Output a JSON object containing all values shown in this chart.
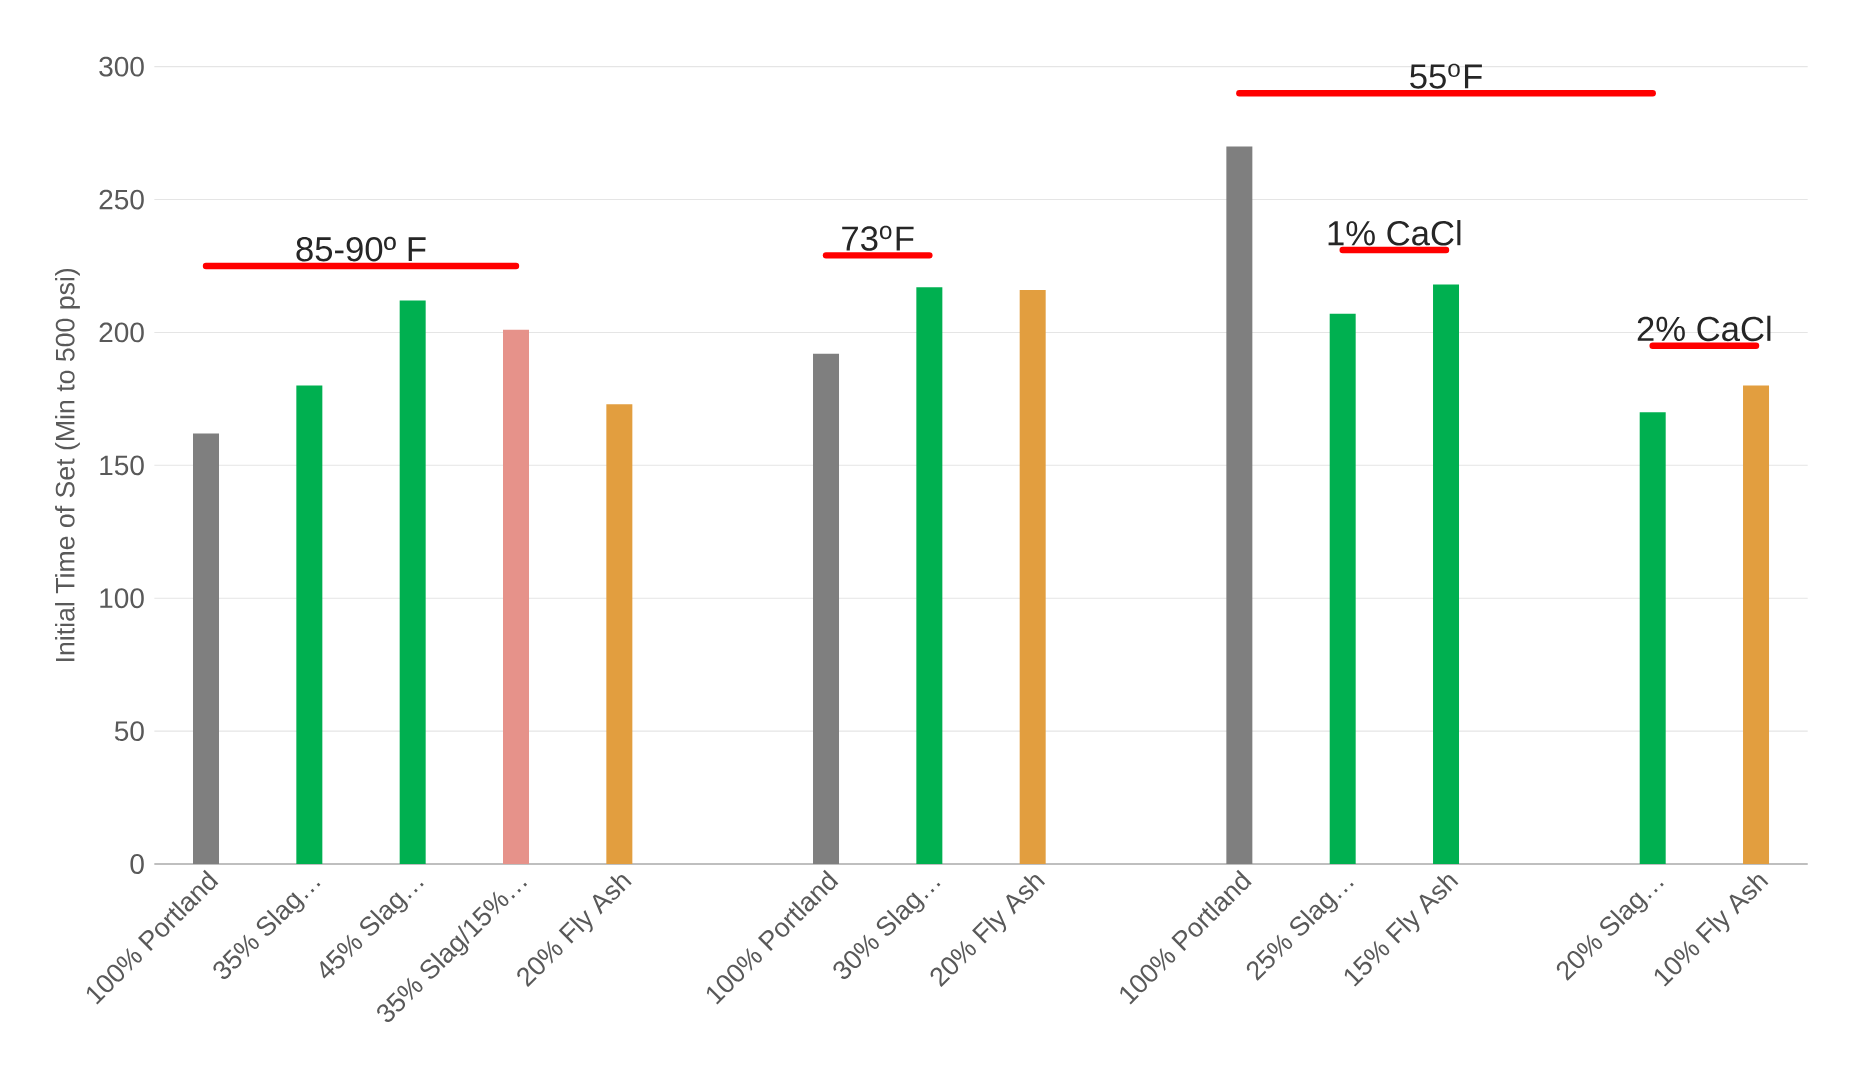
{
  "chart_data": {
    "type": "bar",
    "ylabel": "Initial Time of Set (Min to 500 psi)",
    "categories": [
      "100% Portland",
      "35% Slag…",
      "45% Slag…",
      "35% Slag/15%…",
      "20% Fly Ash",
      null,
      "100% Portland",
      "30% Slag…",
      "20% Fly Ash",
      null,
      "100% Portland",
      "25% Slag…",
      "15% Fly Ash",
      null,
      "20% Slag…",
      "10% Fly Ash"
    ],
    "series": [
      {
        "color": "#7f7f7f",
        "values": [
          162,
          null,
          null,
          null,
          null,
          null,
          192,
          null,
          null,
          null,
          270,
          null,
          null,
          null,
          null,
          null
        ]
      },
      {
        "color": "#00b050",
        "values": [
          null,
          180,
          212,
          null,
          null,
          null,
          null,
          217,
          null,
          null,
          null,
          207,
          218,
          null,
          170,
          null
        ]
      },
      {
        "color": "#e6928a",
        "values": [
          null,
          null,
          null,
          201,
          null,
          null,
          null,
          null,
          null,
          null,
          null,
          null,
          null,
          null,
          null,
          null
        ]
      },
      {
        "color": "#e29e3f",
        "values": [
          null,
          null,
          null,
          null,
          173,
          null,
          null,
          null,
          216,
          null,
          null,
          null,
          null,
          null,
          null,
          180
        ]
      },
      {
        "type": "line",
        "name": "85-90º F",
        "color": "#ff0000",
        "values": [
          225,
          225,
          225,
          225,
          null,
          null,
          null,
          null,
          null,
          null,
          null,
          null,
          null,
          null,
          null,
          null
        ]
      },
      {
        "type": "line",
        "name": "73$^{o}$F",
        "color": "#ff0000",
        "values": [
          null,
          null,
          null,
          null,
          null,
          null,
          229,
          229,
          null,
          null,
          null,
          null,
          null,
          null,
          null,
          null
        ]
      },
      {
        "type": "line",
        "name": "55$^{o}$F",
        "color": "#ff0000",
        "values": [
          null,
          null,
          null,
          null,
          null,
          null,
          null,
          null,
          null,
          null,
          290,
          290,
          290,
          290,
          290,
          null
        ]
      },
      {
        "type": "line",
        "name": "1% CaCl",
        "color": "#ff0000",
        "values": [
          null,
          null,
          null,
          null,
          null,
          null,
          null,
          null,
          null,
          null,
          null,
          231,
          231,
          null,
          null,
          null
        ]
      },
      {
        "type": "line",
        "name": "2% CaCl",
        "color": "#ff0000",
        "values": [
          null,
          null,
          null,
          null,
          null,
          null,
          null,
          null,
          null,
          null,
          null,
          null,
          null,
          null,
          195,
          195
        ]
      }
    ],
    "ylim": [
      0,
      300
    ],
    "yticks": [
      0,
      50,
      100,
      150,
      200,
      250,
      300
    ],
    "grid": "y",
    "marker": "none"
  }
}
